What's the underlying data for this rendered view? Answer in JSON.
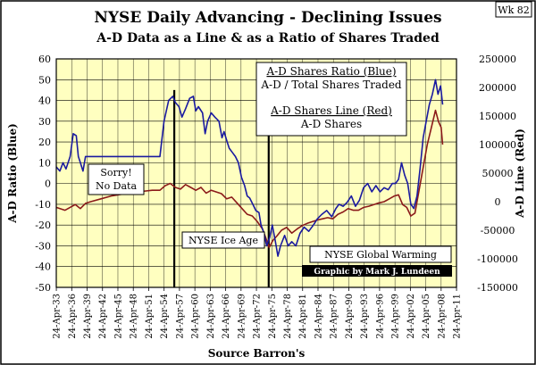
{
  "chart_data": {
    "type": "line",
    "title": "NYSE Daily Advancing - Declining Issues",
    "subtitle": "A-D Data as a Line & as a Ratio of Shares Traded",
    "corner_tag": "Wk 82",
    "ylabel_left": "A-D Ratio (Blue)",
    "ylabel_right": "A-D Line (Red)",
    "xlabel": "Source Barron's",
    "ylim_left": [
      -50,
      60
    ],
    "ylim_right": [
      -150000,
      250000
    ],
    "yticks_left": [
      60,
      50,
      40,
      30,
      20,
      10,
      0,
      -10,
      -20,
      -30,
      -40,
      -50
    ],
    "yticks_right": [
      "250000",
      "200000",
      "150000",
      "100000",
      "50000",
      "0",
      "-50000",
      "-100000",
      "-150000"
    ],
    "yticks_right_values": [
      250000,
      200000,
      150000,
      100000,
      50000,
      0,
      -50000,
      -100000,
      -150000
    ],
    "xlim": [
      1933.3,
      2011.3
    ],
    "xtick_years": [
      1933,
      1936,
      1939,
      1942,
      1945,
      1948,
      1951,
      1954,
      1957,
      1960,
      1963,
      1966,
      1969,
      1972,
      1975,
      1978,
      1981,
      1984,
      1987,
      1990,
      1993,
      1996,
      1999,
      2002,
      2005,
      2008,
      2011
    ],
    "xtick_labels": [
      "24-Apr-33",
      "24-Apr-36",
      "24-Apr-39",
      "24-Apr-42",
      "24-Apr-45",
      "24-Apr-48",
      "24-Apr-51",
      "24-Apr-54",
      "24-Apr-57",
      "24-Apr-60",
      "24-Apr-63",
      "24-Apr-66",
      "24-Apr-69",
      "24-Apr-72",
      "24-Apr-75",
      "24-Apr-78",
      "24-Apr-81",
      "24-Apr-84",
      "24-Apr-87",
      "24-Apr-90",
      "24-Apr-93",
      "24-Apr-96",
      "24-Apr-99",
      "24-Apr-02",
      "24-Apr-05",
      "24-Apr-08",
      "24-Apr-11"
    ],
    "grid": true,
    "background": "#FFFFC0",
    "series": [
      {
        "name": "A-D Shares Ratio",
        "axis": "left",
        "color": "#1A1AA0",
        "x": [
          1933.3,
          1934.0,
          1934.6,
          1935.2,
          1936.0,
          1936.6,
          1937.2,
          1937.6,
          1938.0,
          1938.5,
          1939.0,
          1940.0,
          1942.0,
          1944.0,
          1946.0,
          1948.0,
          1949.5,
          1950.5,
          1951.5,
          1952.5,
          1953.5,
          1954.3,
          1955.2,
          1956.0,
          1956.5,
          1957.2,
          1957.8,
          1958.5,
          1959.3,
          1960.0,
          1960.5,
          1961.0,
          1961.8,
          1962.3,
          1962.8,
          1963.5,
          1964.2,
          1965.0,
          1965.6,
          1966.0,
          1966.6,
          1967.0,
          1967.6,
          1968.2,
          1968.8,
          1969.4,
          1970.0,
          1970.5,
          1971.0,
          1971.6,
          1972.2,
          1972.8,
          1973.2,
          1973.8,
          1974.3,
          1974.9,
          1975.4,
          1976.0,
          1976.5,
          1977.0,
          1977.8,
          1978.5,
          1979.2,
          1980.0,
          1980.8,
          1981.6,
          1982.5,
          1983.4,
          1984.2,
          1985.0,
          1986.0,
          1987.0,
          1987.8,
          1988.4,
          1989.2,
          1990.0,
          1990.8,
          1991.6,
          1992.4,
          1993.2,
          1994.0,
          1994.8,
          1995.6,
          1996.4,
          1997.2,
          1998.0,
          1998.8,
          1999.4,
          2000.0,
          2000.6,
          2001.2,
          2001.8,
          2002.4,
          2003.0,
          2003.6,
          2004.2,
          2004.8,
          2005.4,
          2006.0,
          2006.6,
          2007.2,
          2007.7,
          2008.2,
          2008.6
        ],
        "values": [
          8,
          6,
          10,
          7,
          13,
          24,
          23,
          13,
          10,
          6,
          13,
          13,
          13,
          13,
          13,
          13,
          13,
          13,
          13,
          13,
          13,
          30,
          40,
          42,
          39,
          37,
          32,
          36,
          41,
          42,
          35,
          37,
          34,
          24,
          30,
          34,
          32,
          30,
          22,
          25,
          20,
          17,
          15,
          13,
          10,
          3,
          -1,
          -6,
          -7,
          -10,
          -13,
          -14,
          -20,
          -24,
          -30,
          -26,
          -20,
          -28,
          -35,
          -30,
          -25,
          -30,
          -28,
          -30,
          -24,
          -21,
          -23,
          -20,
          -17,
          -15,
          -13,
          -16,
          -12,
          -10,
          -11,
          -9,
          -6,
          -11,
          -8,
          -2,
          0,
          -4,
          -1,
          -4,
          -2,
          -3,
          0,
          0,
          2,
          10,
          4,
          0,
          -10,
          -12,
          -6,
          7,
          22,
          30,
          38,
          43,
          50,
          43,
          47,
          38
        ]
      },
      {
        "name": "A-D Shares",
        "axis": "right",
        "color": "#8B1A1A",
        "x": [
          1933.3,
          1935.0,
          1937.0,
          1938.0,
          1939.0,
          1940.0,
          1942.0,
          1944.0,
          1946.0,
          1948.0,
          1950.0,
          1952.0,
          1953.5,
          1954.5,
          1955.5,
          1956.5,
          1957.5,
          1958.5,
          1959.5,
          1960.5,
          1961.5,
          1962.5,
          1963.5,
          1964.5,
          1965.5,
          1966.5,
          1967.5,
          1968.5,
          1969.5,
          1970.5,
          1971.5,
          1972.5,
          1973.5,
          1974.2,
          1974.8,
          1975.5,
          1976.3,
          1977.2,
          1978.2,
          1979.2,
          1980.2,
          1981.2,
          1982.2,
          1983.2,
          1984.2,
          1985.2,
          1986.2,
          1987.2,
          1988.2,
          1989.2,
          1990.2,
          1991.2,
          1992.2,
          1993.2,
          1994.2,
          1995.2,
          1996.2,
          1997.2,
          1998.2,
          1999.2,
          2000.0,
          2000.8,
          2001.6,
          2002.4,
          2003.2,
          2004.0,
          2004.8,
          2005.6,
          2006.4,
          2007.2,
          2007.8,
          2008.3,
          2008.6
        ],
        "values": [
          -10000,
          -15000,
          -5000,
          -12000,
          -3000,
          0,
          5000,
          10000,
          13000,
          15000,
          18000,
          20000,
          20000,
          28000,
          32000,
          25000,
          22000,
          30000,
          25000,
          20000,
          25000,
          15000,
          20000,
          17000,
          14000,
          5000,
          8000,
          -2000,
          -12000,
          -22000,
          -25000,
          -35000,
          -48000,
          -65000,
          -80000,
          -68000,
          -60000,
          -50000,
          -45000,
          -55000,
          -48000,
          -42000,
          -38000,
          -35000,
          -32000,
          -30000,
          -28000,
          -30000,
          -22000,
          -18000,
          -12000,
          -15000,
          -15000,
          -10000,
          -8000,
          -5000,
          -2000,
          0,
          5000,
          10000,
          12000,
          -5000,
          -10000,
          -25000,
          -20000,
          20000,
          60000,
          100000,
          130000,
          160000,
          140000,
          130000,
          100000
        ]
      }
    ],
    "vertical_markers": [
      1956.3,
      1974.7
    ],
    "legend_box": {
      "line1": "A-D Shares Ratio (Blue)",
      "line2": "A-D / Total Shares Traded",
      "line3": "A-D Shares Line (Red)",
      "line4": "A-D Shares"
    },
    "annotations": {
      "sorry_line1": "Sorry!",
      "sorry_line2": "No Data",
      "ice_age": "NYSE Ice Age",
      "global_warming": "NYSE Global Warming",
      "credit": "Graphic by Mark J. Lundeen"
    }
  }
}
